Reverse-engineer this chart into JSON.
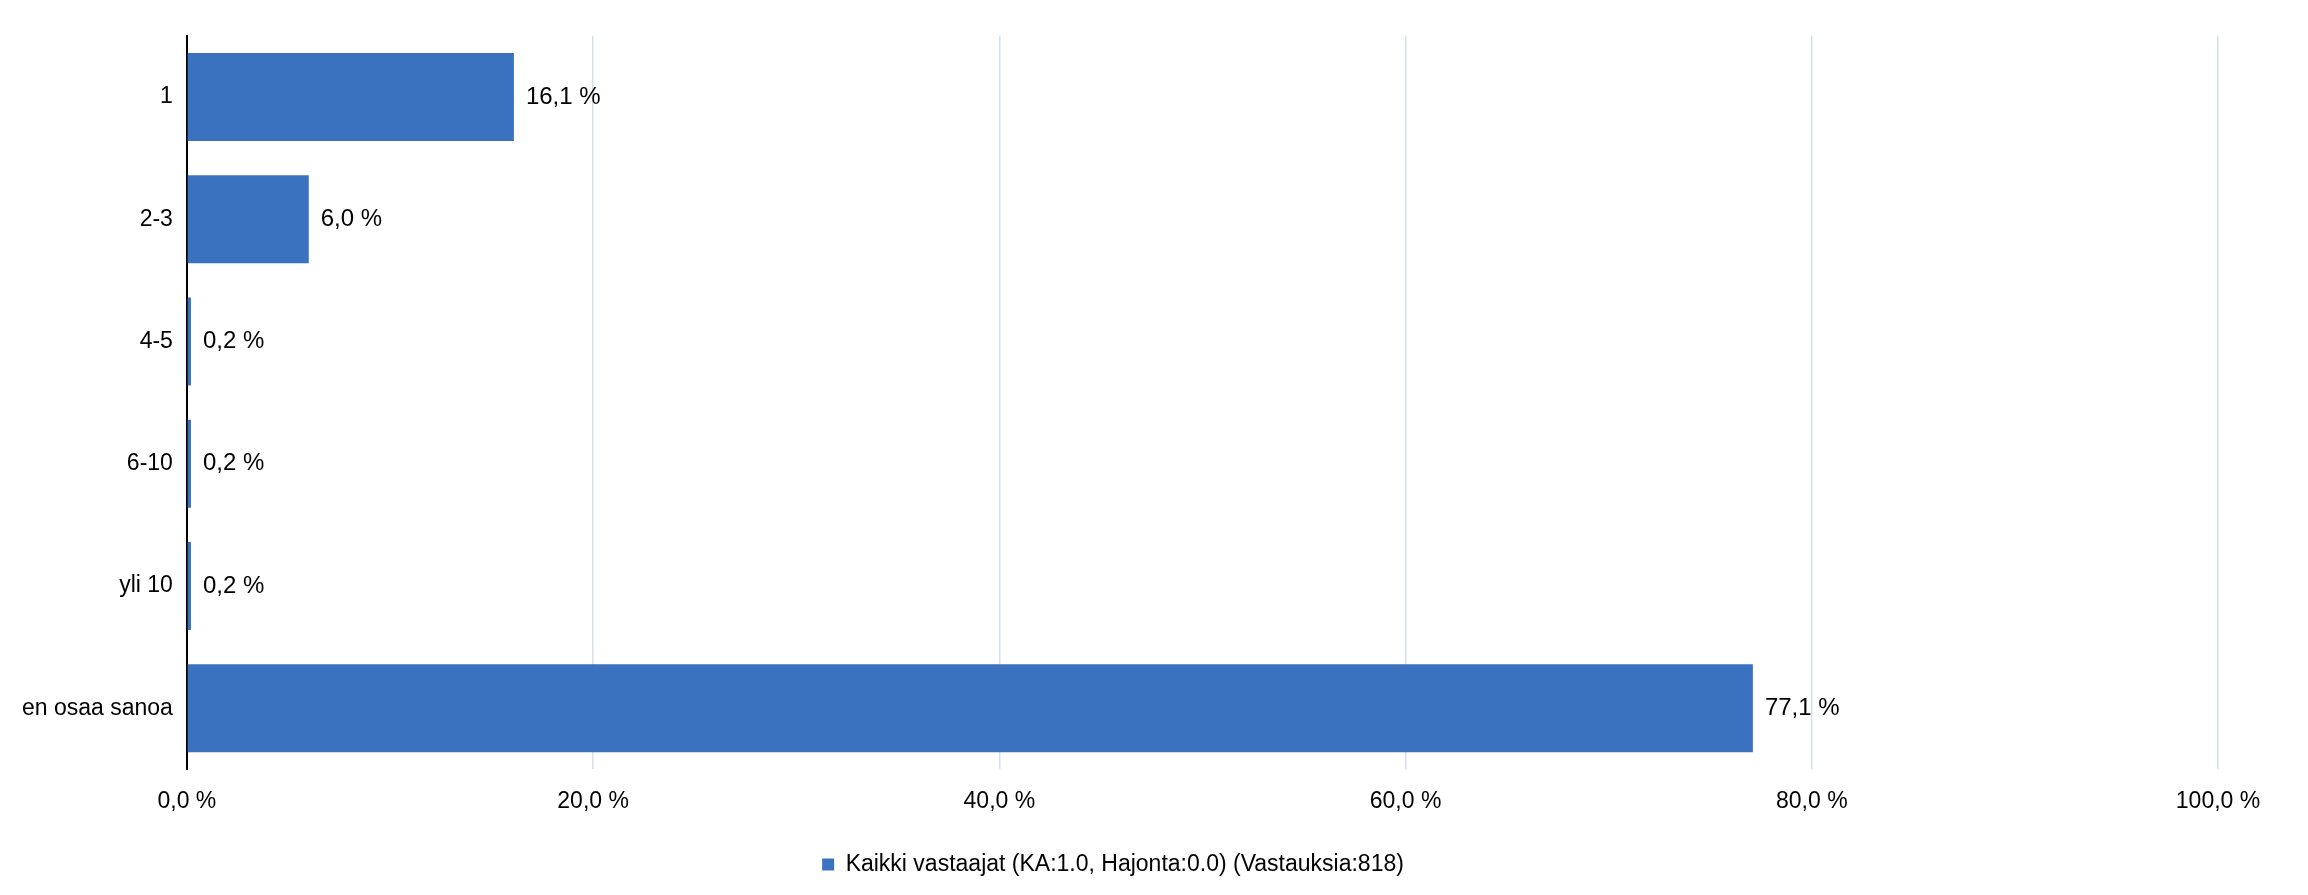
{
  "chart_data": {
    "type": "bar",
    "orientation": "horizontal",
    "categories": [
      "1",
      "2-3",
      "4-5",
      "6-10",
      "yli 10",
      "en osaa sanoa"
    ],
    "series": [
      {
        "name": "Kaikki vastaajat (KA:1.0, Hajonta:0.0) (Vastauksia:818)",
        "color": "#3a72bf",
        "values": [
          16.1,
          6.0,
          0.2,
          0.2,
          0.2,
          77.1
        ],
        "value_labels": [
          "16,1 %",
          "6,0 %",
          "0,2 %",
          "0,2 %",
          "0,2 %",
          "77,1 %"
        ]
      }
    ],
    "xlim": [
      0,
      100
    ],
    "xticks": [
      {
        "value": 0,
        "label": "0,0 %"
      },
      {
        "value": 20,
        "label": "20,0 %"
      },
      {
        "value": 40,
        "label": "40,0 %"
      },
      {
        "value": 60,
        "label": "60,0 %"
      },
      {
        "value": 80,
        "label": "80,0 %"
      },
      {
        "value": 100,
        "label": "100,0 %"
      }
    ],
    "grid": "x",
    "legend": "bottom"
  }
}
